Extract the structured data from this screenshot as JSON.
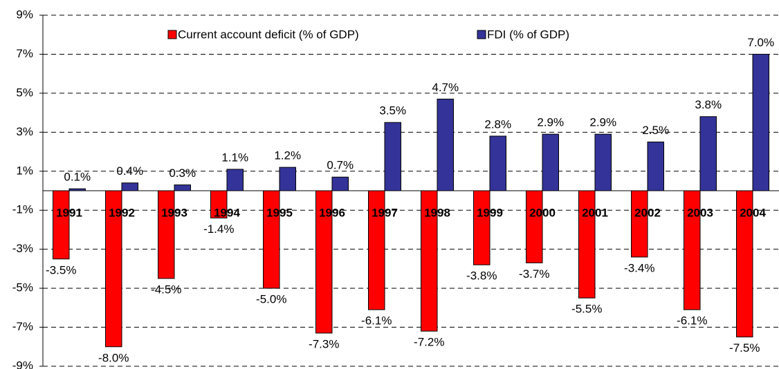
{
  "chart_data": {
    "type": "bar",
    "categories": [
      "1991",
      "1992",
      "1993",
      "1994",
      "1995",
      "1996",
      "1997",
      "1998",
      "1999",
      "2000",
      "2001",
      "2002",
      "2003",
      "2004"
    ],
    "series": [
      {
        "name": "Current account deficit (% of GDP)",
        "color": "#ff0000",
        "values": [
          -3.5,
          -8.0,
          -4.5,
          -1.4,
          -5.0,
          -7.3,
          -6.1,
          -7.2,
          -3.8,
          -3.7,
          -5.5,
          -3.4,
          -6.1,
          -7.5
        ],
        "value_labels": [
          "-3.5%",
          "-8.0%",
          "-4.5%",
          "-1.4%",
          "-5.0%",
          "-7.3%",
          "-6.1%",
          "-7.2%",
          "-3.8%",
          "-3.7%",
          "-5.5%",
          "-3.4%",
          "-6.1%",
          "-7.5%"
        ]
      },
      {
        "name": "FDI (% of GDP)",
        "color": "#333399",
        "values": [
          0.1,
          0.4,
          0.3,
          1.1,
          1.2,
          0.7,
          3.5,
          4.7,
          2.8,
          2.9,
          2.9,
          2.5,
          3.8,
          7.0
        ],
        "value_labels": [
          "0.1%",
          "0.4%",
          "0.3%",
          "1.1%",
          "1.2%",
          "0.7%",
          "3.5%",
          "4.7%",
          "2.8%",
          "2.9%",
          "2.9%",
          "2.5%",
          "3.8%",
          "7.0%"
        ]
      }
    ],
    "ylim": [
      -9,
      9
    ],
    "yticks": [
      {
        "value": 9,
        "label": "9%"
      },
      {
        "value": 7,
        "label": "7%"
      },
      {
        "value": 5,
        "label": "5%"
      },
      {
        "value": 3,
        "label": "3%"
      },
      {
        "value": 1,
        "label": "1%"
      },
      {
        "value": -1,
        "label": "-1%"
      },
      {
        "value": -3,
        "label": "-3%"
      },
      {
        "value": -5,
        "label": "-5%"
      },
      {
        "value": -7,
        "label": "-7%"
      },
      {
        "value": -9,
        "label": "-9%"
      }
    ],
    "grid": true,
    "legend": "top"
  }
}
